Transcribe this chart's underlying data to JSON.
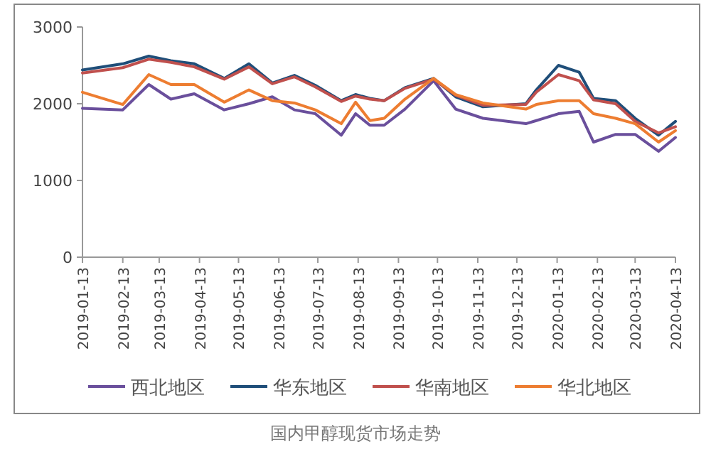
{
  "chart_data": {
    "type": "line",
    "title": "国内甲醇现货市场走势",
    "x": [
      "2019-01-13",
      "2019-02-13",
      "2019-03-05",
      "2019-03-22",
      "2019-04-09",
      "2019-05-02",
      "2019-05-21",
      "2019-06-08",
      "2019-06-25",
      "2019-07-11",
      "2019-07-31",
      "2019-08-11",
      "2019-08-22",
      "2019-09-02",
      "2019-09-18",
      "2019-10-10",
      "2019-10-27",
      "2019-11-17",
      "2019-12-20",
      "2019-12-28",
      "2020-01-14",
      "2020-01-30",
      "2020-02-10",
      "2020-02-27",
      "2020-03-13",
      "2020-03-31",
      "2020-04-13"
    ],
    "series": [
      {
        "name": "西北地区",
        "color": "#6a4f9c",
        "values": [
          1940,
          1920,
          2250,
          2060,
          2130,
          1920,
          2000,
          2090,
          1920,
          1870,
          1590,
          1870,
          1720,
          1720,
          1930,
          2300,
          1930,
          1810,
          1740,
          1780,
          1870,
          1900,
          1500,
          1600,
          1600,
          1380,
          1560
        ]
      },
      {
        "name": "华东地区",
        "color": "#1f4e79",
        "values": [
          2440,
          2520,
          2620,
          2560,
          2520,
          2330,
          2520,
          2270,
          2370,
          2240,
          2040,
          2120,
          2070,
          2040,
          2210,
          2330,
          2090,
          1960,
          2000,
          2180,
          2500,
          2410,
          2070,
          2040,
          1810,
          1590,
          1770
        ]
      },
      {
        "name": "华南地区",
        "color": "#c0504d",
        "values": [
          2400,
          2470,
          2580,
          2540,
          2480,
          2320,
          2480,
          2260,
          2350,
          2220,
          2030,
          2100,
          2060,
          2040,
          2200,
          2320,
          2110,
          1980,
          1990,
          2150,
          2380,
          2300,
          2050,
          2000,
          1770,
          1620,
          1700
        ]
      },
      {
        "name": "华北地区",
        "color": "#ed7d31",
        "values": [
          2150,
          1990,
          2380,
          2250,
          2250,
          2020,
          2180,
          2040,
          2010,
          1920,
          1740,
          2020,
          1780,
          1810,
          2060,
          2330,
          2120,
          2010,
          1930,
          1990,
          2040,
          2040,
          1870,
          1810,
          1740,
          1500,
          1650
        ]
      }
    ],
    "xlim": [
      "2019-01-13",
      "2020-04-13"
    ],
    "xticks": [
      "2019-01-13",
      "2019-02-13",
      "2019-03-13",
      "2019-04-13",
      "2019-05-13",
      "2019-06-13",
      "2019-07-13",
      "2019-08-13",
      "2019-09-13",
      "2019-10-13",
      "2019-11-13",
      "2019-12-13",
      "2020-01-13",
      "2020-02-13",
      "2020-03-13",
      "2020-04-13"
    ],
    "ylim": [
      0,
      3000
    ],
    "yticks": [
      0,
      1000,
      2000,
      3000
    ],
    "grid": false,
    "legend": "bottom",
    "marker": "none",
    "line_style": "solid"
  }
}
